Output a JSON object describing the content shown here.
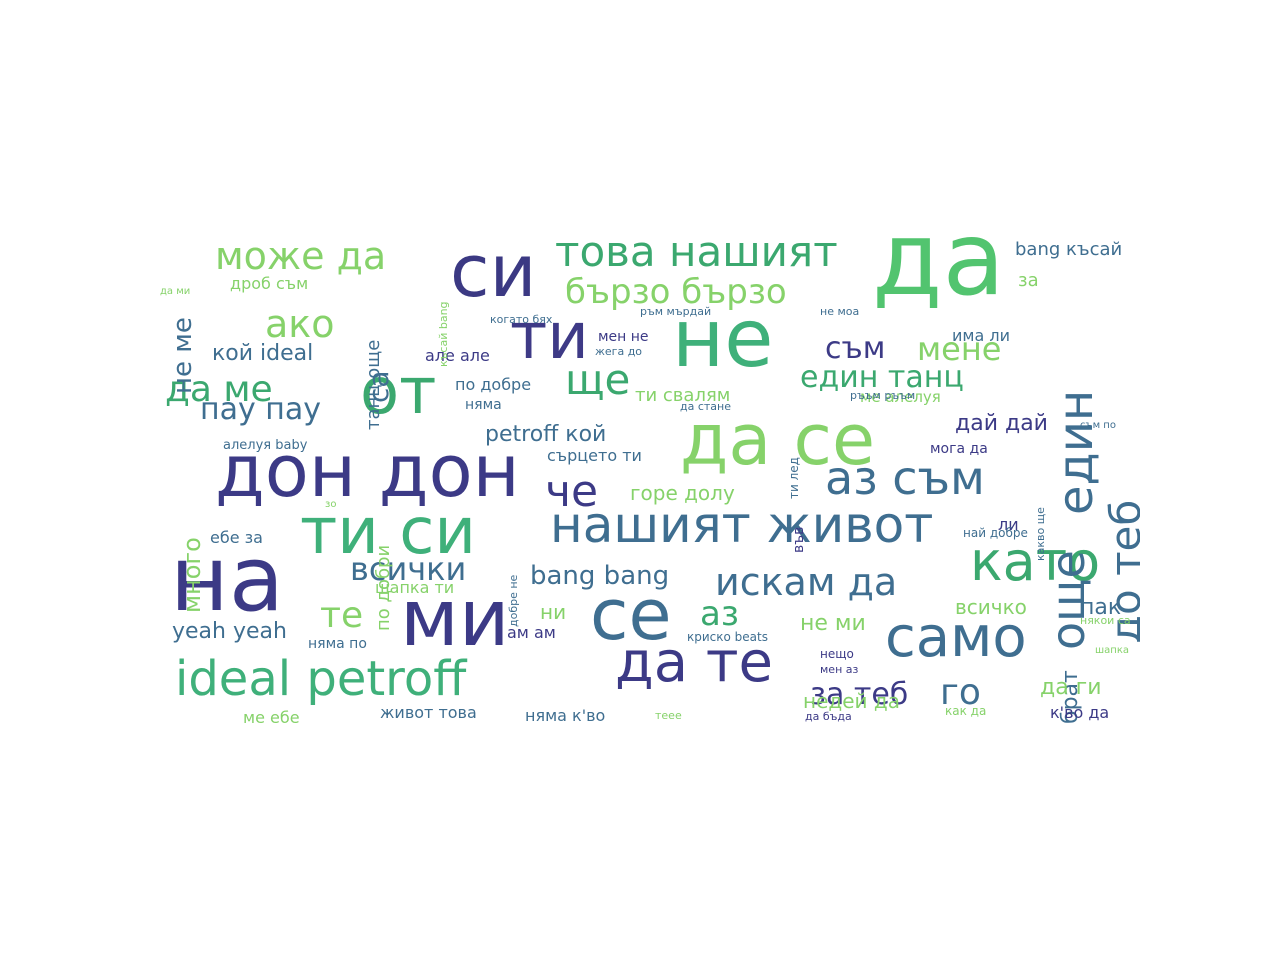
{
  "words": [
    {
      "text": "да",
      "color": "#52c46f"
    },
    {
      "text": "не",
      "color": "#3fb07a"
    },
    {
      "text": "на",
      "color": "#3c3a86"
    },
    {
      "text": "си",
      "color": "#3b3983"
    },
    {
      "text": "ти",
      "color": "#3e3a86"
    },
    {
      "text": "от",
      "color": "#3ba86f"
    },
    {
      "text": "ми",
      "color": "#3c3a86"
    },
    {
      "text": "се",
      "color": "#3f6e90"
    },
    {
      "text": "дон дон",
      "color": "#3c3a86"
    },
    {
      "text": "да се",
      "color": "#86d26a"
    },
    {
      "text": "ти си",
      "color": "#3fb07a"
    },
    {
      "text": "ideal petroff",
      "color": "#3fb07a"
    },
    {
      "text": "нашият живот",
      "color": "#3f6e90"
    },
    {
      "text": "като",
      "color": "#3ba86f"
    },
    {
      "text": "само",
      "color": "#3f6e90"
    },
    {
      "text": "да те",
      "color": "#3c3a86"
    },
    {
      "text": "аз съм",
      "color": "#3f6e90"
    },
    {
      "text": "още",
      "color": "#3f6e90"
    },
    {
      "text": "един",
      "color": "#3f6e90"
    },
    {
      "text": "до теб",
      "color": "#3f6e90"
    },
    {
      "text": "това нашият",
      "color": "#3ba86f"
    },
    {
      "text": "може да",
      "color": "#86d26a"
    },
    {
      "text": "бързо бързо",
      "color": "#86d26a"
    },
    {
      "text": "ако",
      "color": "#86d26a"
    },
    {
      "text": "да ме",
      "color": "#3ba86f"
    },
    {
      "text": "ще",
      "color": "#3ba86f"
    },
    {
      "text": "че",
      "color": "#3c3a86"
    },
    {
      "text": "искам да",
      "color": "#3f6e90"
    },
    {
      "text": "всички",
      "color": "#3f6e90"
    },
    {
      "text": "bang bang",
      "color": "#3f6e90"
    },
    {
      "text": "един танц",
      "color": "#3ba86f"
    },
    {
      "text": "съм",
      "color": "#3c3a86"
    },
    {
      "text": "мене",
      "color": "#86d26a"
    },
    {
      "text": "пау пау",
      "color": "#3f6e90"
    },
    {
      "text": "кой ideal",
      "color": "#3f6e90"
    },
    {
      "text": "petroff кой",
      "color": "#3f6e90"
    },
    {
      "text": "те",
      "color": "#86d26a"
    },
    {
      "text": "аз",
      "color": "#3ba86f"
    },
    {
      "text": "за теб",
      "color": "#3c3a86"
    },
    {
      "text": "го",
      "color": "#3f6e90"
    },
    {
      "text": "yeah yeah",
      "color": "#3f6e90"
    },
    {
      "text": "са",
      "color": "#3f6e90"
    },
    {
      "text": "не ме",
      "color": "#3f6e90"
    },
    {
      "text": "много",
      "color": "#86d26a"
    },
    {
      "text": "дай дай",
      "color": "#3c3a86"
    },
    {
      "text": "горе долу",
      "color": "#86d26a"
    },
    {
      "text": "всичко",
      "color": "#86d26a"
    },
    {
      "text": "не ми",
      "color": "#86d26a"
    },
    {
      "text": "брат",
      "color": "#3f6e90"
    },
    {
      "text": "пак",
      "color": "#3f6e90"
    },
    {
      "text": "да ги",
      "color": "#86d26a"
    },
    {
      "text": "недей да",
      "color": "#86d26a"
    },
    {
      "text": "ни",
      "color": "#86d26a"
    },
    {
      "text": "bang късай",
      "color": "#3f6e90"
    },
    {
      "text": "за",
      "color": "#86d26a"
    },
    {
      "text": "има ли",
      "color": "#3f6e90"
    },
    {
      "text": "ти свалям",
      "color": "#86d26a"
    },
    {
      "text": "сърцето ти",
      "color": "#3f6e90"
    },
    {
      "text": "няма",
      "color": "#3f6e90"
    },
    {
      "text": "по добре",
      "color": "#3f6e90"
    },
    {
      "text": "але але",
      "color": "#3c3a86"
    },
    {
      "text": "мен не",
      "color": "#3c3a86"
    },
    {
      "text": "танц още",
      "color": "#3f6e90"
    },
    {
      "text": "дроб съм",
      "color": "#86d26a"
    },
    {
      "text": "по добри",
      "color": "#86d26a"
    },
    {
      "text": "ебе за",
      "color": "#3f6e90"
    },
    {
      "text": "шапка ти",
      "color": "#86d26a"
    },
    {
      "text": "ам ам",
      "color": "#3c3a86"
    },
    {
      "text": "няма по",
      "color": "#3f6e90"
    },
    {
      "text": "живот това",
      "color": "#3f6e90"
    },
    {
      "text": "няма к'во",
      "color": "#3f6e90"
    },
    {
      "text": "ме ебе",
      "color": "#86d26a"
    },
    {
      "text": "могa да",
      "color": "#3c3a86"
    },
    {
      "text": "ли",
      "color": "#3c3a86"
    },
    {
      "text": "най добре",
      "color": "#3f6e90"
    },
    {
      "text": "к'во да",
      "color": "#3c3a86"
    },
    {
      "text": "алелуя baby",
      "color": "#3f6e90"
    },
    {
      "text": "ме алелуя",
      "color": "#86d26a"
    },
    {
      "text": "във",
      "color": "#3c3a86"
    },
    {
      "text": "криско beats",
      "color": "#3f6e90"
    },
    {
      "text": "нещо",
      "color": "#3c3a86"
    },
    {
      "text": "когато бях",
      "color": "#3f6e90"
    },
    {
      "text": "ръм мърдай",
      "color": "#3f6e90"
    },
    {
      "text": "не моа",
      "color": "#3f6e90"
    },
    {
      "text": "жега до",
      "color": "#3f6e90"
    },
    {
      "text": "да стане",
      "color": "#3f6e90"
    },
    {
      "text": "ти лед",
      "color": "#3f6e90"
    },
    {
      "text": "късай bang",
      "color": "#86d26a"
    },
    {
      "text": "да бъда",
      "color": "#3c3a86"
    },
    {
      "text": "как да",
      "color": "#86d26a"
    },
    {
      "text": "съм по",
      "color": "#3f6e90"
    },
    {
      "text": "добре не",
      "color": "#3f6e90"
    },
    {
      "text": "мен аз",
      "color": "#3c3a86"
    },
    {
      "text": "ръъм ръъм",
      "color": "#3f6e90"
    },
    {
      "text": "шапка",
      "color": "#86d26a"
    },
    {
      "text": "някои са",
      "color": "#86d26a"
    },
    {
      "text": "теее",
      "color": "#86d26a"
    },
    {
      "text": "какво ще",
      "color": "#3f6e90"
    },
    {
      "text": "да ми",
      "color": "#86d26a"
    },
    {
      "text": "зо",
      "color": "#86d26a"
    }
  ]
}
